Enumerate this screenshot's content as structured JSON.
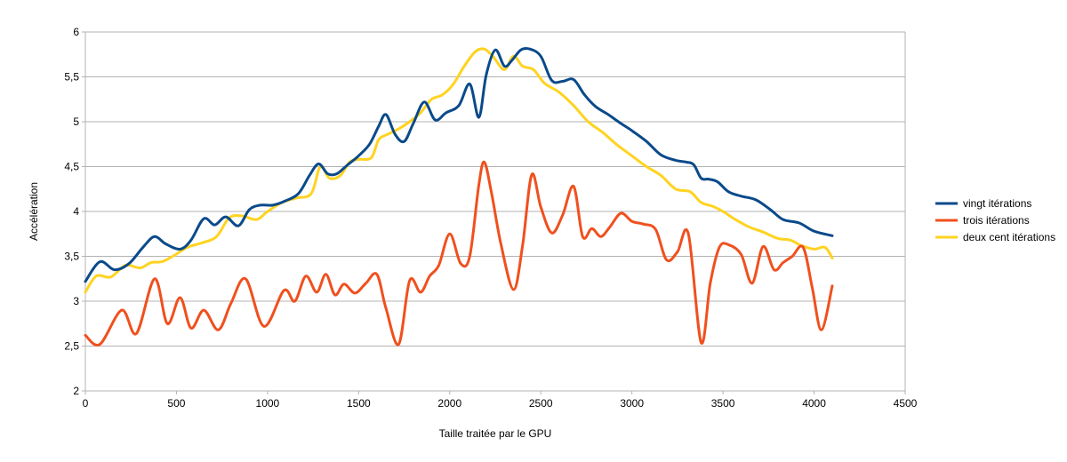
{
  "chart_data": {
    "type": "line",
    "title": "",
    "xlabel": "Taille traitée par le GPU",
    "ylabel": "Accélération",
    "xlim": [
      0,
      4500
    ],
    "ylim": [
      2,
      6
    ],
    "xticks": [
      0,
      500,
      1000,
      1500,
      2000,
      2500,
      3000,
      3500,
      4000,
      4500
    ],
    "xtick_labels": [
      "0",
      "500",
      "1000",
      "1500",
      "2000",
      "2500",
      "3000",
      "3500",
      "4000",
      "4500"
    ],
    "yticks": [
      2,
      2.5,
      3,
      3.5,
      4,
      4.5,
      5,
      5.5,
      6
    ],
    "ytick_labels": [
      "2",
      "2,5",
      "3",
      "3,5",
      "4",
      "4,5",
      "5",
      "5,5",
      "6"
    ],
    "grid": "horizontal",
    "legend_position": "right",
    "series": [
      {
        "name": "vingt itérations",
        "color": "#0a4a8a",
        "x": [
          0,
          80,
          160,
          240,
          320,
          380,
          440,
          520,
          580,
          650,
          710,
          770,
          840,
          900,
          960,
          1030,
          1100,
          1170,
          1230,
          1280,
          1330,
          1380,
          1440,
          1500,
          1560,
          1610,
          1650,
          1700,
          1750,
          1800,
          1860,
          1920,
          1980,
          2050,
          2110,
          2160,
          2200,
          2250,
          2300,
          2340,
          2390,
          2440,
          2500,
          2560,
          2620,
          2680,
          2740,
          2800,
          2870,
          2940,
          3000,
          3080,
          3160,
          3240,
          3300,
          3340,
          3380,
          3420,
          3470,
          3530,
          3600,
          3680,
          3760,
          3830,
          3920,
          4000,
          4100
        ],
        "y": [
          3.22,
          3.44,
          3.35,
          3.42,
          3.61,
          3.72,
          3.64,
          3.58,
          3.68,
          3.92,
          3.85,
          3.94,
          3.84,
          4.02,
          4.07,
          4.07,
          4.12,
          4.2,
          4.4,
          4.53,
          4.42,
          4.42,
          4.52,
          4.62,
          4.75,
          4.95,
          5.08,
          4.86,
          4.78,
          4.98,
          5.22,
          5.02,
          5.1,
          5.18,
          5.42,
          5.05,
          5.52,
          5.8,
          5.62,
          5.68,
          5.8,
          5.81,
          5.73,
          5.46,
          5.45,
          5.47,
          5.3,
          5.17,
          5.08,
          4.98,
          4.9,
          4.78,
          4.63,
          4.57,
          4.55,
          4.52,
          4.37,
          4.36,
          4.33,
          4.22,
          4.17,
          4.13,
          4.02,
          3.91,
          3.87,
          3.78,
          3.73
        ]
      },
      {
        "name": "trois itérations",
        "color": "#f0501e",
        "x": [
          0,
          80,
          200,
          280,
          380,
          450,
          520,
          580,
          650,
          730,
          800,
          880,
          980,
          1090,
          1150,
          1210,
          1270,
          1320,
          1370,
          1420,
          1480,
          1540,
          1600,
          1650,
          1720,
          1780,
          1840,
          1890,
          1940,
          2000,
          2060,
          2110,
          2160,
          2190,
          2230,
          2280,
          2350,
          2400,
          2450,
          2500,
          2560,
          2620,
          2680,
          2730,
          2780,
          2830,
          2880,
          2940,
          3000,
          3060,
          3130,
          3190,
          3250,
          3310,
          3380,
          3430,
          3480,
          3530,
          3600,
          3660,
          3720,
          3780,
          3830,
          3880,
          3940,
          3990,
          4040,
          4100
        ],
        "y": [
          2.62,
          2.52,
          2.9,
          2.64,
          3.25,
          2.75,
          3.04,
          2.7,
          2.9,
          2.68,
          2.98,
          3.25,
          2.72,
          3.12,
          3.0,
          3.28,
          3.1,
          3.3,
          3.07,
          3.19,
          3.09,
          3.2,
          3.3,
          2.92,
          2.52,
          3.23,
          3.1,
          3.28,
          3.4,
          3.75,
          3.42,
          3.5,
          4.3,
          4.55,
          4.2,
          3.65,
          3.13,
          3.62,
          4.41,
          4.05,
          3.76,
          3.96,
          4.28,
          3.72,
          3.81,
          3.72,
          3.83,
          3.98,
          3.89,
          3.86,
          3.8,
          3.46,
          3.55,
          3.75,
          2.54,
          3.2,
          3.6,
          3.63,
          3.52,
          3.2,
          3.61,
          3.35,
          3.43,
          3.5,
          3.6,
          3.15,
          2.68,
          3.17
        ]
      },
      {
        "name": "deux cent itérations",
        "color": "#ffd320",
        "x": [
          0,
          60,
          140,
          220,
          300,
          360,
          420,
          480,
          560,
          640,
          720,
          790,
          860,
          940,
          1000,
          1080,
          1160,
          1240,
          1290,
          1340,
          1400,
          1450,
          1500,
          1570,
          1610,
          1660,
          1720,
          1780,
          1840,
          1900,
          1960,
          2020,
          2080,
          2140,
          2190,
          2240,
          2300,
          2350,
          2400,
          2460,
          2520,
          2600,
          2680,
          2760,
          2840,
          2920,
          3000,
          3080,
          3160,
          3240,
          3320,
          3380,
          3440,
          3500,
          3560,
          3640,
          3720,
          3800,
          3870,
          3930,
          4000,
          4060,
          4100
        ],
        "y": [
          3.1,
          3.28,
          3.27,
          3.4,
          3.37,
          3.43,
          3.44,
          3.5,
          3.6,
          3.65,
          3.72,
          3.93,
          3.95,
          3.91,
          4.0,
          4.1,
          4.15,
          4.2,
          4.5,
          4.37,
          4.4,
          4.55,
          4.58,
          4.6,
          4.8,
          4.86,
          4.92,
          5.0,
          5.1,
          5.25,
          5.3,
          5.42,
          5.62,
          5.78,
          5.81,
          5.72,
          5.58,
          5.73,
          5.62,
          5.58,
          5.43,
          5.33,
          5.18,
          5.0,
          4.88,
          4.74,
          4.62,
          4.5,
          4.4,
          4.25,
          4.22,
          4.1,
          4.06,
          4.0,
          3.92,
          3.83,
          3.77,
          3.7,
          3.68,
          3.62,
          3.58,
          3.6,
          3.48
        ]
      }
    ]
  }
}
